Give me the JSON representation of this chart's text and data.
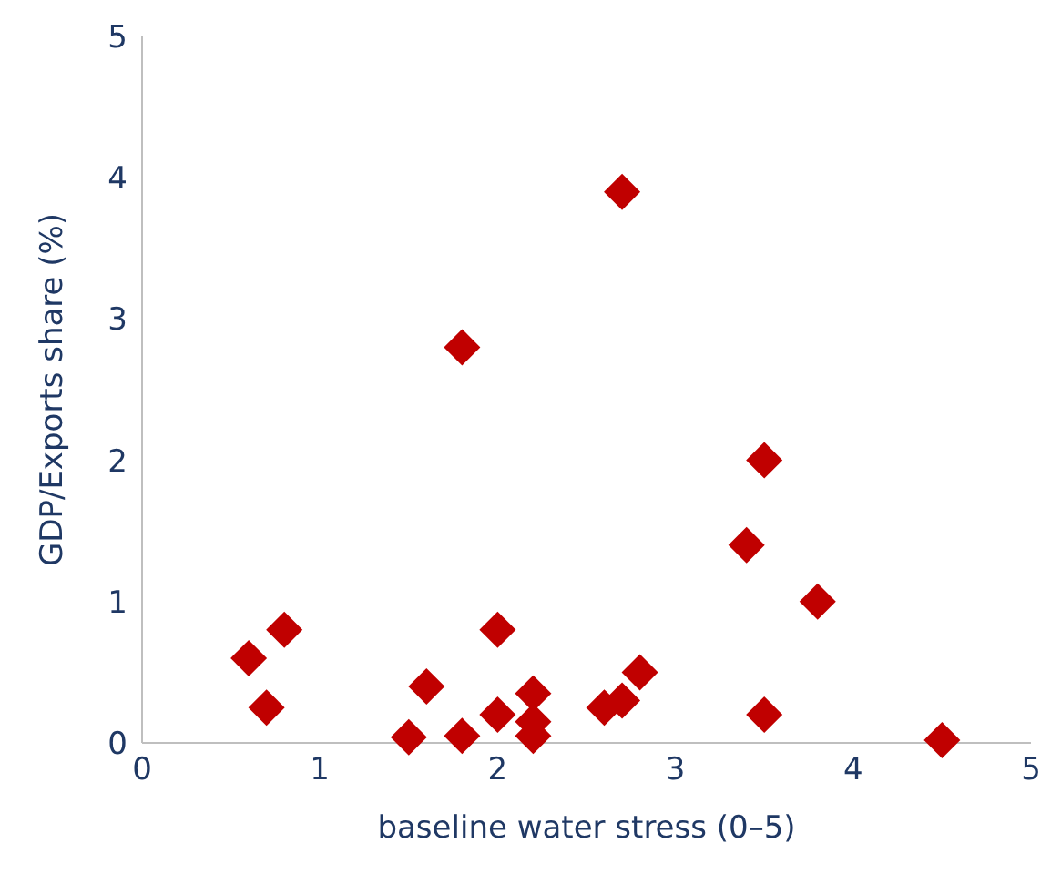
{
  "chart_data": {
    "type": "scatter",
    "xlabel": "baseline water stress (0–5)",
    "ylabel": "GDP/Exports share (%)",
    "x": [
      0.6,
      0.7,
      0.8,
      1.5,
      1.6,
      1.8,
      1.8,
      2.0,
      2.0,
      2.2,
      2.2,
      2.2,
      2.6,
      2.7,
      2.7,
      2.8,
      3.4,
      3.5,
      3.5,
      3.8,
      4.5
    ],
    "series": [
      {
        "color": "#c00000",
        "values": [
          0.6,
          0.25,
          0.8,
          0.04,
          0.4,
          2.8,
          0.05,
          0.8,
          0.2,
          0.35,
          0.15,
          0.05,
          0.25,
          3.9,
          0.3,
          0.5,
          1.4,
          2.0,
          0.2,
          1.0,
          0.02
        ]
      }
    ],
    "xlim": [
      0,
      5
    ],
    "xticks": [
      0,
      1,
      2,
      3,
      4,
      5
    ],
    "ylim": [
      0,
      5
    ],
    "yticks": [
      0,
      1,
      2,
      3,
      4,
      5
    ],
    "grid": false,
    "marker": "diamond"
  }
}
